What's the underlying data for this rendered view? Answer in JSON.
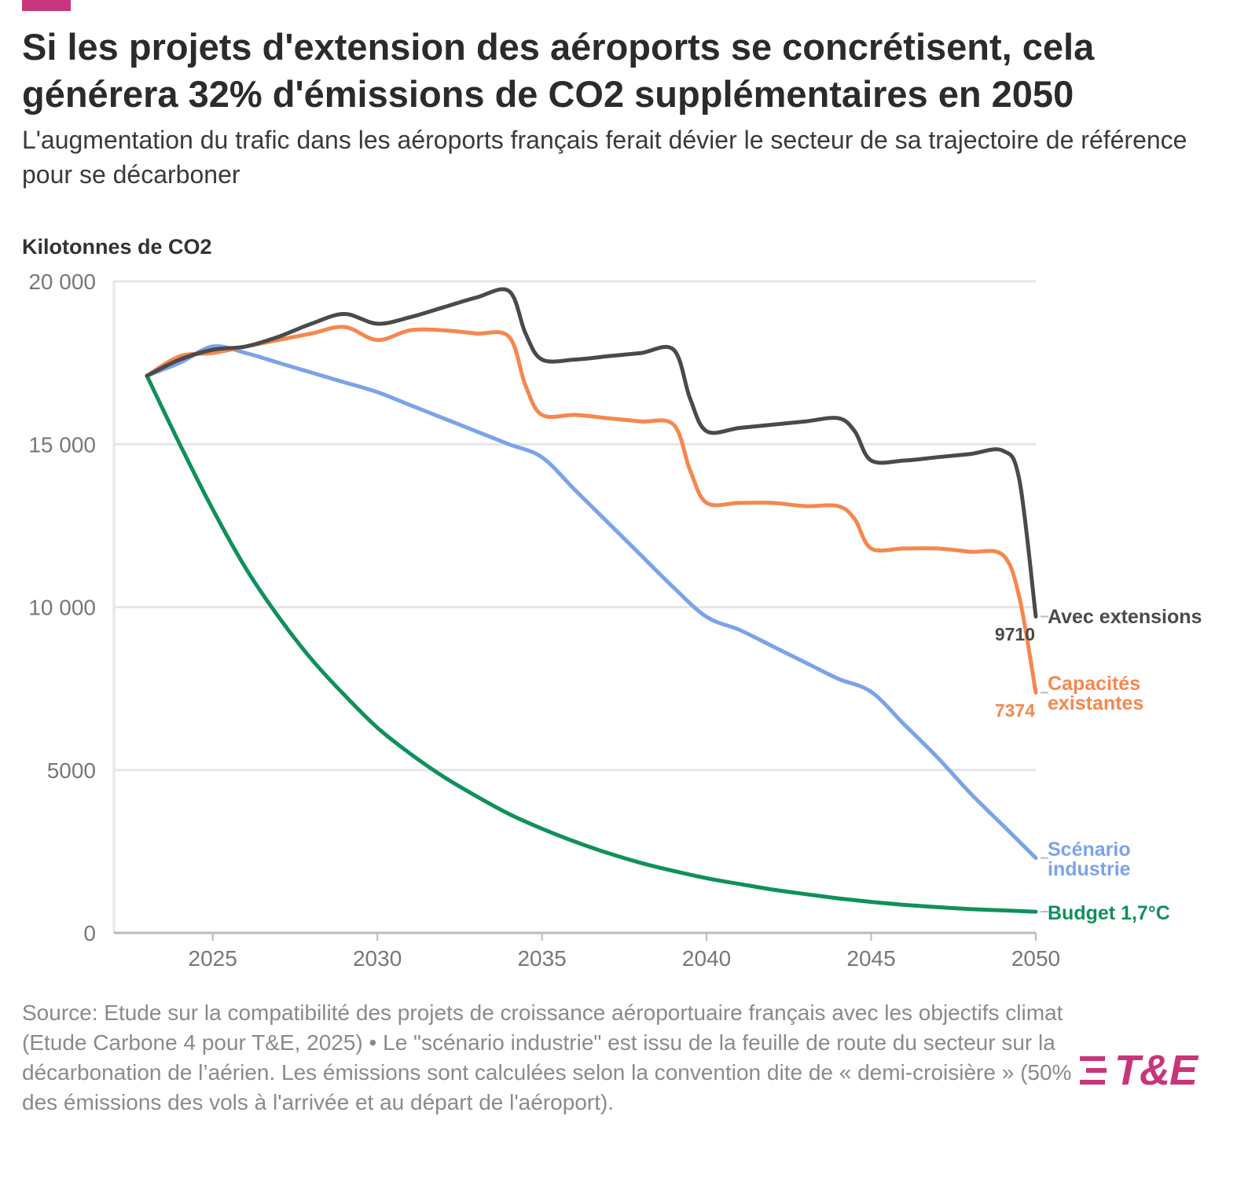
{
  "colors": {
    "accent": "#c8357a",
    "avec_extensions": "#4a4a4a",
    "capacites_existantes": "#f5874f",
    "scenario_industrie": "#7ba3ea",
    "budget": "#10905a",
    "grid": "#e6e6e6",
    "axis": "#bbbbbb",
    "tick_text": "#777777",
    "logo": "#c8357a"
  },
  "header": {
    "title": "Si les projets d'extension des aéroports se concrétisent, cela générera 32% d'émissions de CO2 supplémentaires en 2050",
    "subtitle": "L'augmentation du trafic dans les aéroports français ferait dévier le secteur de sa trajectoire de référence pour se décarboner"
  },
  "chart_data": {
    "type": "line",
    "ylabel": "Kilotonnes de CO2",
    "xlabel": "",
    "xlim": [
      2022,
      2050
    ],
    "ylim": [
      0,
      20000
    ],
    "x_ticks": [
      {
        "value": 2025,
        "label": "2025"
      },
      {
        "value": 2030,
        "label": "2030"
      },
      {
        "value": 2035,
        "label": "2035"
      },
      {
        "value": 2040,
        "label": "2040"
      },
      {
        "value": 2045,
        "label": "2045"
      },
      {
        "value": 2050,
        "label": "2050"
      }
    ],
    "y_ticks": [
      {
        "value": 0,
        "label": "0"
      },
      {
        "value": 5000,
        "label": "5000"
      },
      {
        "value": 10000,
        "label": "10 000"
      },
      {
        "value": 15000,
        "label": "15 000"
      },
      {
        "value": 20000,
        "label": "20 000"
      }
    ],
    "grid": true,
    "series": [
      {
        "key": "avec_extensions",
        "name": "Avec extensions",
        "label_lines": [
          "Avec extensions"
        ],
        "end_value": 9710,
        "end_value_label": "9710",
        "x": [
          2023,
          2024,
          2025,
          2026,
          2027,
          2028,
          2029,
          2030,
          2031,
          2032,
          2033,
          2034,
          2034.5,
          2035,
          2036,
          2037,
          2038,
          2039,
          2039.5,
          2040,
          2041,
          2042,
          2043,
          2044,
          2044.5,
          2045,
          2046,
          2047,
          2048,
          2049,
          2049.5,
          2050
        ],
        "values": [
          17100,
          17600,
          17900,
          18000,
          18300,
          18700,
          19000,
          18700,
          18900,
          19200,
          19500,
          19700,
          18400,
          17600,
          17600,
          17700,
          17800,
          17900,
          16400,
          15400,
          15500,
          15600,
          15700,
          15800,
          15400,
          14500,
          14500,
          14600,
          14700,
          14800,
          13900,
          9710
        ]
      },
      {
        "key": "capacites_existantes",
        "name": "Capacités existantes",
        "label_lines": [
          "Capacités",
          "existantes"
        ],
        "end_value": 7374,
        "end_value_label": "7374",
        "x": [
          2023,
          2024,
          2025,
          2026,
          2027,
          2028,
          2029,
          2030,
          2031,
          2032,
          2033,
          2034,
          2034.5,
          2035,
          2036,
          2037,
          2038,
          2039,
          2039.5,
          2040,
          2041,
          2042,
          2043,
          2044,
          2044.5,
          2045,
          2046,
          2047,
          2048,
          2049,
          2049.5,
          2050
        ],
        "values": [
          17100,
          17700,
          17800,
          18000,
          18200,
          18400,
          18600,
          18200,
          18500,
          18500,
          18400,
          18300,
          16800,
          15900,
          15900,
          15800,
          15700,
          15600,
          14200,
          13200,
          13200,
          13200,
          13100,
          13100,
          12700,
          11800,
          11800,
          11800,
          11700,
          11600,
          10300,
          7374
        ]
      },
      {
        "key": "scenario_industrie",
        "name": "Scénario industrie",
        "label_lines": [
          "Scénario",
          "industrie"
        ],
        "end_value": 2300,
        "end_value_label": "",
        "x": [
          2023,
          2024,
          2025,
          2026,
          2027,
          2028,
          2029,
          2030,
          2031,
          2032,
          2033,
          2034,
          2035,
          2036,
          2037,
          2038,
          2039,
          2040,
          2041,
          2042,
          2043,
          2044,
          2045,
          2046,
          2047,
          2048,
          2049,
          2050
        ],
        "values": [
          17100,
          17500,
          18000,
          17800,
          17500,
          17200,
          16900,
          16600,
          16200,
          15800,
          15400,
          15000,
          14600,
          13600,
          12600,
          11600,
          10600,
          9700,
          9300,
          8800,
          8300,
          7800,
          7400,
          6400,
          5400,
          4300,
          3300,
          2300
        ]
      },
      {
        "key": "budget",
        "name": "Budget 1,7°C",
        "label_lines": [
          "Budget 1,7°C"
        ],
        "end_value": 650,
        "end_value_label": "",
        "x": [
          2023,
          2024,
          2025,
          2026,
          2027,
          2028,
          2029,
          2030,
          2031,
          2032,
          2033,
          2034,
          2035,
          2036,
          2037,
          2038,
          2039,
          2040,
          2041,
          2042,
          2043,
          2044,
          2045,
          2046,
          2047,
          2048,
          2049,
          2050
        ],
        "values": [
          17100,
          15000,
          13000,
          11200,
          9700,
          8400,
          7300,
          6300,
          5500,
          4800,
          4200,
          3650,
          3200,
          2800,
          2450,
          2150,
          1900,
          1680,
          1500,
          1330,
          1190,
          1060,
          950,
          860,
          790,
          730,
          690,
          650
        ]
      }
    ]
  },
  "footer": {
    "source": "Source: Etude sur la compatibilité des projets de croissance aéroportuaire français avec les objectifs climat (Etude Carbone 4 pour T&E, 2025) • Le \"scénario industrie\" est issu de la feuille de route du secteur sur la décarbonation de l’aérien. Les émissions sont calculées selon la convention dite de « demi-croisière » (50% des émissions des vols à l'arrivée et au départ de l'aéroport).",
    "logo_text": "T&E"
  }
}
